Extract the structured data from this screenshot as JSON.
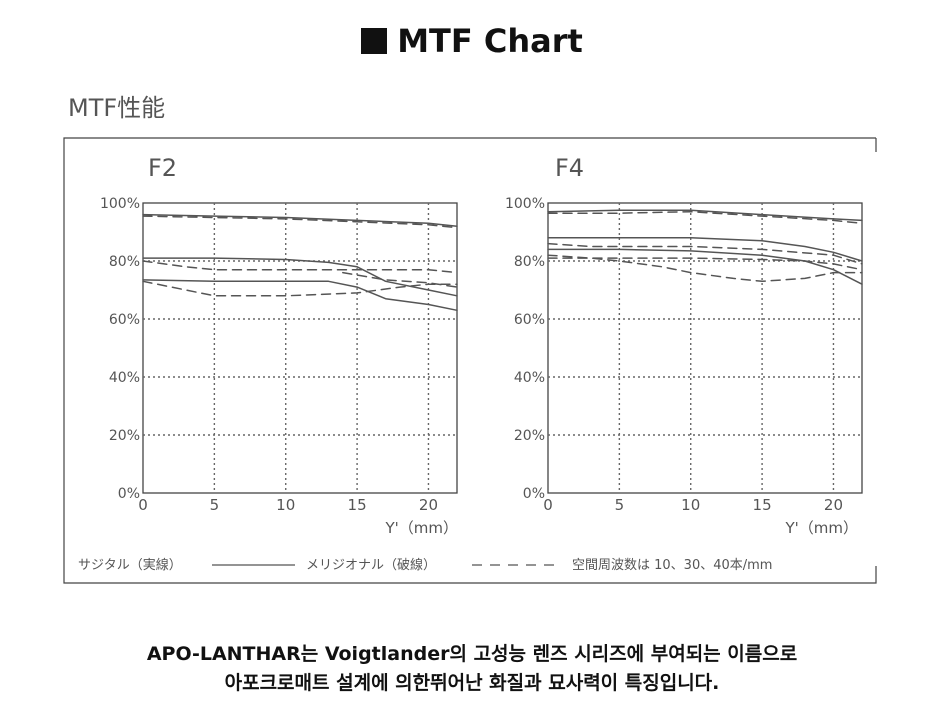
{
  "heading": "MTF Chart",
  "figure_title": "MTF性能",
  "legend": {
    "sagittal": "サジタル（実線）",
    "meridional": "メリジオナル（破線）",
    "frequencies": "空間周波数は 10、30、40本/mm"
  },
  "caption": {
    "line1": "APO-LANTHAR는 Voigtlander의 고성능 렌즈 시리즈에 부여되는 이름으로",
    "line2": "아포크로매트 설계에 의한뛰어난 화질과 묘사력이 특징입니다."
  },
  "colors": {
    "curve": "#555555",
    "grid": "#666666",
    "frame": "#444444",
    "text": "#555555"
  },
  "chart_data": [
    {
      "type": "line",
      "title": "F2",
      "xlabel": "Y'（mm）",
      "ylabel": "",
      "xlim": [
        0,
        22
      ],
      "ylim": [
        0,
        100
      ],
      "x_ticks": [
        "0",
        "5",
        "10",
        "15",
        "20"
      ],
      "y_ticks": [
        "0%",
        "20%",
        "40%",
        "60%",
        "80%",
        "100%"
      ],
      "grid": true,
      "series": [
        {
          "style": "solid",
          "x": [
            0,
            5,
            10,
            15,
            20,
            22
          ],
          "y": [
            96,
            95.5,
            95,
            94,
            93,
            92
          ]
        },
        {
          "style": "dashed",
          "x": [
            0,
            5,
            10,
            15,
            20,
            22
          ],
          "y": [
            95.5,
            95,
            94.5,
            93.5,
            92.5,
            91.5
          ]
        },
        {
          "style": "solid",
          "x": [
            0,
            5,
            10,
            13,
            15,
            17,
            20,
            22
          ],
          "y": [
            81,
            81,
            80.5,
            79.5,
            78,
            73,
            70,
            68
          ]
        },
        {
          "style": "dashed",
          "x": [
            0,
            3,
            5,
            10,
            15,
            18,
            20,
            22
          ],
          "y": [
            80,
            78,
            77,
            77,
            77,
            77,
            77,
            76
          ]
        },
        {
          "style": "solid",
          "x": [
            0,
            5,
            10,
            13,
            15,
            17,
            20,
            22
          ],
          "y": [
            73.5,
            73,
            73,
            73,
            71,
            67,
            65,
            63
          ]
        },
        {
          "style": "dashed",
          "x": [
            0,
            3,
            5,
            10,
            15,
            18,
            20,
            22
          ],
          "y": [
            73,
            70,
            68,
            68,
            69,
            71,
            72,
            72
          ]
        },
        {
          "style": "dashed",
          "x": [
            14,
            17,
            20,
            22
          ],
          "y": [
            76,
            73.5,
            72.5,
            71
          ]
        }
      ]
    },
    {
      "type": "line",
      "title": "F4",
      "xlabel": "Y'（mm）",
      "ylabel": "",
      "xlim": [
        0,
        22
      ],
      "ylim": [
        0,
        100
      ],
      "x_ticks": [
        "0",
        "5",
        "10",
        "15",
        "20"
      ],
      "y_ticks": [
        "0%",
        "20%",
        "40%",
        "60%",
        "80%",
        "100%"
      ],
      "grid": true,
      "series": [
        {
          "style": "solid",
          "x": [
            0,
            5,
            10,
            15,
            20,
            22
          ],
          "y": [
            97,
            97.5,
            97.5,
            96,
            94.5,
            94
          ]
        },
        {
          "style": "dashed",
          "x": [
            0,
            5,
            10,
            15,
            20,
            22
          ],
          "y": [
            96.5,
            96.5,
            97,
            95.5,
            94,
            93
          ]
        },
        {
          "style": "solid",
          "x": [
            0,
            5,
            10,
            15,
            18,
            20,
            22
          ],
          "y": [
            88,
            88,
            88,
            87,
            85,
            83,
            80
          ]
        },
        {
          "style": "dashed",
          "x": [
            0,
            3,
            5,
            10,
            15,
            20,
            22
          ],
          "y": [
            86,
            85,
            85,
            85,
            84,
            82,
            79
          ]
        },
        {
          "style": "solid",
          "x": [
            0,
            5,
            10,
            15,
            18,
            20,
            22
          ],
          "y": [
            84,
            84,
            83.5,
            82,
            80,
            77,
            72
          ]
        },
        {
          "style": "dashed",
          "x": [
            0,
            3,
            5,
            8,
            10,
            13,
            15,
            18,
            20,
            22
          ],
          "y": [
            82,
            81,
            80,
            78,
            76,
            74,
            73,
            74,
            76,
            76
          ]
        },
        {
          "style": "dashed",
          "x": [
            0,
            5,
            10,
            15,
            18,
            20,
            22
          ],
          "y": [
            81,
            81,
            81,
            80.5,
            80,
            79,
            77
          ]
        }
      ]
    }
  ]
}
